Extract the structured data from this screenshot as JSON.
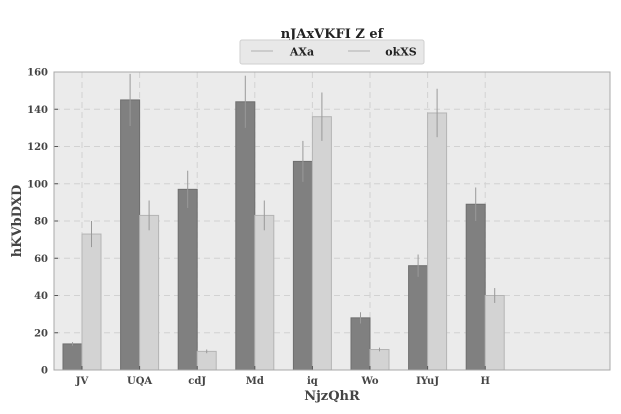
{
  "chart_data": {
    "type": "bar",
    "title": "nJAxVKFI Z ef",
    "xlabel": "NjzQhR",
    "ylabel": "hKVbDXD",
    "categories": [
      "JV",
      "UQA",
      "cdJ",
      "Md",
      "iq",
      "Wo",
      "IYuJ",
      "H"
    ],
    "ylim": [
      0,
      160
    ],
    "yticks": [
      0,
      20,
      40,
      60,
      80,
      100,
      120,
      140,
      160
    ],
    "grid": true,
    "legend_position": "top-center",
    "series": [
      {
        "name": "AXa",
        "color": "#808080",
        "values": [
          14,
          145,
          97,
          144,
          112,
          28,
          56,
          89
        ],
        "errors": [
          1,
          14,
          10,
          14,
          11,
          3,
          6,
          9
        ]
      },
      {
        "name": "okXS",
        "color": "#d3d3d3",
        "values": [
          73,
          83,
          10,
          83,
          136,
          11,
          138,
          40
        ],
        "errors": [
          7,
          8,
          1,
          8,
          13,
          1,
          13,
          4
        ]
      }
    ]
  }
}
